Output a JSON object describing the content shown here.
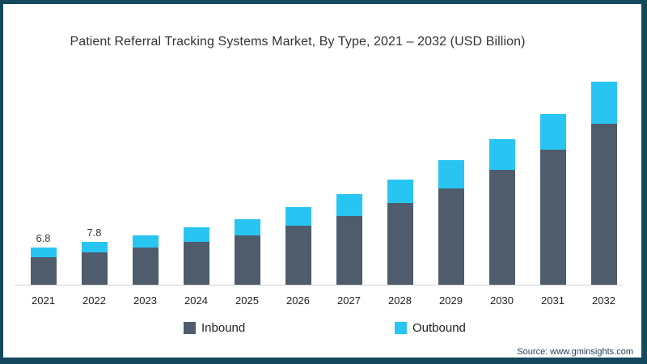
{
  "frame": {
    "border_color": "#15485C",
    "background": "#FFFFFF"
  },
  "chart_data": {
    "type": "bar",
    "stacked": true,
    "title": "Patient Referral Tracking Systems Market, By Type, 2021 – 2032 (USD Billion)",
    "categories": [
      "2021",
      "2022",
      "2023",
      "2024",
      "2025",
      "2026",
      "2027",
      "2028",
      "2029",
      "2030",
      "2031",
      "2032"
    ],
    "series": [
      {
        "name": "Inbound",
        "color": "#4E5C6B",
        "values": [
          5.0,
          5.9,
          6.8,
          7.8,
          9.0,
          10.7,
          12.5,
          14.9,
          17.5,
          20.9,
          24.6,
          29.2
        ]
      },
      {
        "name": "Outbound",
        "color": "#29C5F2",
        "values": [
          1.8,
          1.9,
          2.2,
          2.6,
          2.9,
          3.4,
          3.9,
          4.3,
          5.2,
          5.6,
          6.4,
          7.6
        ]
      }
    ],
    "totals": [
      6.8,
      7.8,
      9.0,
      10.4,
      11.9,
      14.1,
      16.4,
      19.2,
      22.7,
      26.5,
      31.0,
      36.8
    ],
    "data_labels": [
      "6.8",
      "7.8",
      "",
      "",
      "",
      "",
      "",
      "",
      "",
      "",
      "",
      ""
    ],
    "xlabel": "",
    "ylabel": "",
    "ylim": [
      0,
      38
    ],
    "grid": false,
    "legend_position": "bottom",
    "axis_line_color": "#D4D4D4"
  },
  "legend": {
    "inbound": "Inbound",
    "outbound": "Outbound"
  },
  "source": "Source: www.gminsights.com"
}
